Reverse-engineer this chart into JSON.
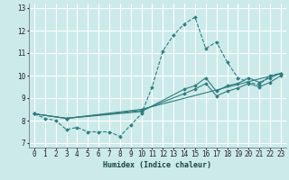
{
  "title": "",
  "xlabel": "Humidex (Indice chaleur)",
  "bg_color": "#cceaea",
  "grid_color": "#ffffff",
  "line_color": "#2e7d7d",
  "xlim": [
    -0.5,
    23.5
  ],
  "ylim": [
    6.8,
    13.2
  ],
  "xticks": [
    0,
    1,
    2,
    3,
    4,
    5,
    6,
    7,
    8,
    9,
    10,
    11,
    12,
    13,
    14,
    15,
    16,
    17,
    18,
    19,
    20,
    21,
    22,
    23
  ],
  "yticks": [
    7,
    8,
    9,
    10,
    11,
    12,
    13
  ],
  "series": [
    {
      "x": [
        0,
        1,
        2,
        3,
        4,
        5,
        6,
        7,
        8,
        9,
        10,
        11,
        12,
        13,
        14,
        15,
        16,
        17,
        18,
        19,
        20,
        21,
        22,
        23
      ],
      "y": [
        8.3,
        8.1,
        8.0,
        7.6,
        7.7,
        7.5,
        7.5,
        7.5,
        7.3,
        7.8,
        8.3,
        9.5,
        11.1,
        11.8,
        12.3,
        12.6,
        11.2,
        11.5,
        10.6,
        9.9,
        9.7,
        9.6,
        10.0,
        10.1
      ],
      "linestyle": "--"
    },
    {
      "x": [
        0,
        3,
        10,
        14,
        15,
        16,
        17,
        18,
        19,
        20,
        21,
        22,
        23
      ],
      "y": [
        8.3,
        8.1,
        8.4,
        9.4,
        9.55,
        9.9,
        9.3,
        9.55,
        9.65,
        9.9,
        9.7,
        9.9,
        10.1
      ],
      "linestyle": "-"
    },
    {
      "x": [
        0,
        3,
        10,
        14,
        15,
        16,
        17,
        18,
        19,
        20,
        21,
        22,
        23
      ],
      "y": [
        8.3,
        8.1,
        8.45,
        9.2,
        9.4,
        9.65,
        9.1,
        9.3,
        9.45,
        9.65,
        9.5,
        9.7,
        10.0
      ],
      "linestyle": "-"
    },
    {
      "x": [
        0,
        3,
        10,
        23
      ],
      "y": [
        8.3,
        8.1,
        8.5,
        10.1
      ],
      "linestyle": "-"
    }
  ]
}
